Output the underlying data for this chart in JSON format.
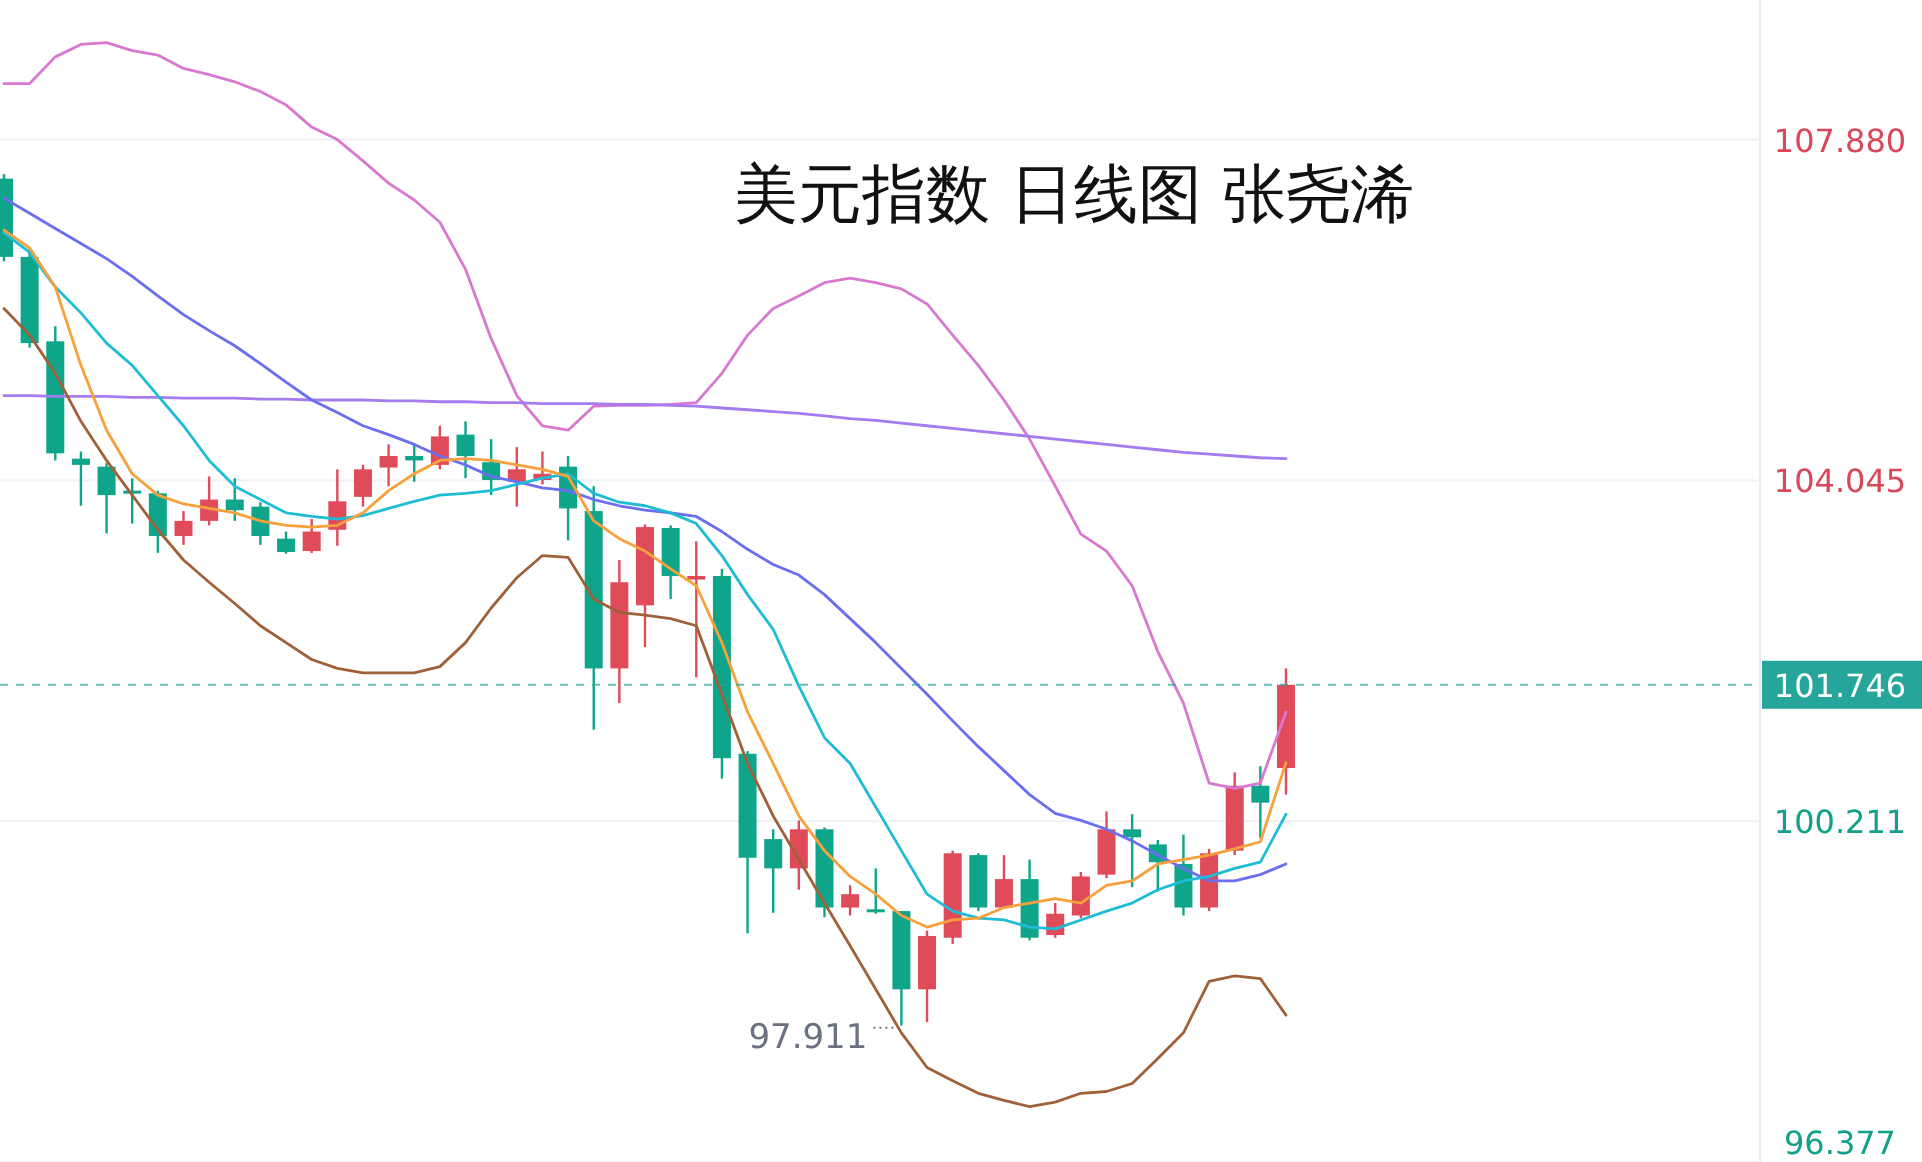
{
  "chart_data": {
    "type": "candlestick",
    "title": "美元指数 日线图 张尧浠",
    "categories": [
      null,
      null,
      null,
      null,
      null,
      null,
      null,
      null,
      null,
      null,
      null,
      null,
      null,
      null,
      null,
      null,
      null,
      null,
      null,
      null,
      null,
      null,
      null,
      null,
      null,
      null,
      null,
      null,
      null,
      null,
      null,
      null,
      null,
      null,
      null,
      null,
      null,
      null,
      null,
      null,
      null,
      null,
      null,
      null,
      null,
      null,
      null,
      null,
      null,
      null,
      null
    ],
    "ohlc": [
      [
        107.44,
        107.49,
        106.51,
        106.56
      ],
      [
        106.56,
        106.66,
        105.54,
        105.59
      ],
      [
        105.61,
        105.78,
        104.27,
        104.35
      ],
      [
        104.29,
        104.37,
        103.76,
        104.22
      ],
      [
        104.2,
        104.24,
        103.45,
        103.88
      ],
      [
        103.93,
        104.07,
        103.56,
        103.91
      ],
      [
        103.9,
        103.93,
        103.23,
        103.42
      ],
      [
        103.42,
        103.7,
        103.32,
        103.59
      ],
      [
        103.59,
        104.09,
        103.54,
        103.83
      ],
      [
        103.83,
        104.07,
        103.59,
        103.71
      ],
      [
        103.75,
        103.8,
        103.32,
        103.42
      ],
      [
        103.39,
        103.47,
        103.22,
        103.24
      ],
      [
        103.25,
        103.61,
        103.23,
        103.47
      ],
      [
        103.49,
        104.17,
        103.31,
        103.81
      ],
      [
        103.86,
        104.22,
        103.75,
        104.17
      ],
      [
        104.19,
        104.45,
        103.98,
        104.32
      ],
      [
        104.32,
        104.46,
        104.03,
        104.27
      ],
      [
        104.22,
        104.66,
        104.17,
        104.54
      ],
      [
        104.56,
        104.71,
        104.07,
        104.32
      ],
      [
        104.25,
        104.51,
        103.88,
        104.05
      ],
      [
        104.03,
        104.42,
        103.75,
        104.17
      ],
      [
        104.05,
        104.37,
        104.0,
        104.12
      ],
      [
        104.2,
        104.32,
        103.37,
        103.73
      ],
      [
        103.7,
        103.98,
        101.24,
        101.93
      ],
      [
        101.93,
        103.15,
        101.54,
        102.9
      ],
      [
        102.64,
        103.55,
        102.17,
        103.52
      ],
      [
        103.51,
        103.54,
        102.71,
        102.97
      ],
      [
        102.93,
        103.36,
        101.83,
        102.97
      ],
      [
        102.97,
        103.05,
        100.69,
        100.92
      ],
      [
        100.97,
        101.0,
        98.95,
        99.8
      ],
      [
        100.01,
        100.12,
        99.18,
        99.68
      ],
      [
        99.68,
        100.22,
        99.44,
        100.12
      ],
      [
        100.12,
        100.14,
        99.13,
        99.24
      ],
      [
        99.24,
        99.49,
        99.15,
        99.39
      ],
      [
        99.22,
        99.68,
        99.17,
        99.2
      ],
      [
        99.2,
        99.2,
        97.911,
        98.32
      ],
      [
        98.32,
        98.98,
        97.95,
        98.92
      ],
      [
        98.9,
        99.88,
        98.83,
        99.85
      ],
      [
        99.83,
        99.85,
        99.2,
        99.24
      ],
      [
        99.24,
        99.83,
        99.23,
        99.56
      ],
      [
        99.56,
        99.78,
        98.87,
        98.9
      ],
      [
        98.93,
        99.29,
        98.9,
        99.17
      ],
      [
        99.15,
        99.64,
        99.12,
        99.59
      ],
      [
        99.61,
        100.32,
        99.57,
        100.12
      ],
      [
        100.12,
        100.29,
        99.47,
        100.03
      ],
      [
        99.95,
        100.0,
        99.42,
        99.75
      ],
      [
        99.73,
        100.06,
        99.15,
        99.24
      ],
      [
        99.24,
        99.9,
        99.2,
        99.85
      ],
      [
        99.88,
        100.76,
        99.83,
        100.61
      ],
      [
        100.61,
        100.83,
        100.02,
        100.42
      ],
      [
        100.81,
        101.93,
        100.51,
        101.746
      ]
    ],
    "series": [
      {
        "type": "line",
        "color": "#d978d0",
        "values": [
          108.51,
          108.51,
          108.81,
          108.95,
          108.97,
          108.88,
          108.83,
          108.68,
          108.61,
          108.53,
          108.42,
          108.27,
          108.02,
          107.88,
          107.64,
          107.39,
          107.2,
          106.95,
          106.42,
          105.64,
          105.0,
          104.66,
          104.61,
          104.88,
          104.89,
          104.89,
          104.9,
          104.92,
          105.25,
          105.68,
          105.98,
          106.12,
          106.27,
          106.32,
          106.27,
          106.2,
          106.03,
          105.68,
          105.34,
          104.95,
          104.51,
          103.98,
          103.44,
          103.25,
          102.86,
          102.12,
          101.54,
          100.64,
          100.58,
          100.64,
          101.44
        ]
      },
      {
        "type": "line",
        "color": "#a47cf0",
        "values": [
          105.0,
          105.0,
          104.99,
          104.99,
          104.99,
          104.98,
          104.98,
          104.97,
          104.97,
          104.97,
          104.96,
          104.96,
          104.95,
          104.95,
          104.95,
          104.94,
          104.94,
          104.93,
          104.93,
          104.92,
          104.92,
          104.91,
          104.91,
          104.91,
          104.9,
          104.9,
          104.89,
          104.88,
          104.86,
          104.84,
          104.82,
          104.8,
          104.77,
          104.74,
          104.72,
          104.69,
          104.66,
          104.63,
          104.6,
          104.57,
          104.54,
          104.51,
          104.48,
          104.45,
          104.42,
          104.39,
          104.36,
          104.34,
          104.32,
          104.3,
          104.29
        ]
      },
      {
        "type": "line",
        "color": "#6b6fef",
        "values": [
          107.22,
          107.05,
          106.88,
          106.71,
          106.54,
          106.34,
          106.12,
          105.91,
          105.73,
          105.56,
          105.36,
          105.15,
          104.95,
          104.81,
          104.66,
          104.56,
          104.45,
          104.32,
          104.22,
          104.09,
          104.03,
          103.96,
          103.93,
          103.83,
          103.76,
          103.71,
          103.68,
          103.64,
          103.47,
          103.27,
          103.1,
          102.98,
          102.76,
          102.49,
          102.22,
          101.93,
          101.64,
          101.34,
          101.05,
          100.78,
          100.51,
          100.3,
          100.22,
          100.12,
          99.99,
          99.83,
          99.68,
          99.54,
          99.54,
          99.61,
          99.73
        ]
      },
      {
        "type": "line",
        "color": "#1fbcd6",
        "values": [
          106.83,
          106.61,
          106.22,
          105.93,
          105.59,
          105.34,
          105.0,
          104.66,
          104.27,
          103.98,
          103.83,
          103.68,
          103.64,
          103.61,
          103.65,
          103.73,
          103.81,
          103.88,
          103.9,
          103.93,
          104.0,
          104.07,
          104.12,
          103.9,
          103.8,
          103.76,
          103.68,
          103.56,
          103.2,
          102.76,
          102.37,
          101.73,
          101.15,
          100.86,
          100.37,
          99.88,
          99.39,
          99.2,
          99.12,
          99.1,
          99.02,
          99.0,
          99.1,
          99.2,
          99.29,
          99.44,
          99.54,
          99.59,
          99.68,
          99.75,
          100.29
        ]
      },
      {
        "type": "line",
        "color": "#f7a03c",
        "values": [
          106.86,
          106.66,
          106.22,
          105.34,
          104.61,
          104.12,
          103.88,
          103.78,
          103.73,
          103.68,
          103.59,
          103.54,
          103.52,
          103.54,
          103.68,
          103.93,
          104.12,
          104.27,
          104.29,
          104.27,
          104.22,
          104.17,
          104.09,
          103.59,
          103.39,
          103.25,
          103.05,
          102.86,
          102.22,
          101.44,
          100.86,
          100.27,
          99.88,
          99.59,
          99.39,
          99.15,
          99.02,
          99.1,
          99.12,
          99.24,
          99.29,
          99.34,
          99.29,
          99.49,
          99.54,
          99.73,
          99.78,
          99.83,
          99.9,
          99.98,
          100.87
        ]
      },
      {
        "type": "line",
        "color": "#a0603a",
        "values": [
          105.98,
          105.68,
          105.25,
          104.71,
          104.27,
          103.88,
          103.49,
          103.15,
          102.9,
          102.66,
          102.41,
          102.22,
          102.03,
          101.93,
          101.88,
          101.88,
          101.88,
          101.95,
          102.22,
          102.61,
          102.95,
          103.2,
          103.18,
          102.71,
          102.56,
          102.53,
          102.49,
          102.41,
          101.64,
          100.86,
          100.27,
          99.78,
          99.29,
          98.81,
          98.32,
          97.83,
          97.44,
          97.29,
          97.15,
          97.07,
          97.0,
          97.05,
          97.15,
          97.17,
          97.26,
          97.54,
          97.83,
          98.41,
          98.47,
          98.44,
          98.03
        ]
      }
    ],
    "ylim": [
      96.377,
      109.45
    ],
    "yticks": [
      {
        "value": 107.88,
        "label": "107.880"
      },
      104.045,
      100.211,
      96.377
    ],
    "ref_lines": [
      {
        "axis": "y",
        "value": 101.746,
        "label": "101.746",
        "color": "#26a69a",
        "line_style": "dashed"
      }
    ],
    "annotations": [
      "97.911"
    ],
    "grid": "y"
  }
}
